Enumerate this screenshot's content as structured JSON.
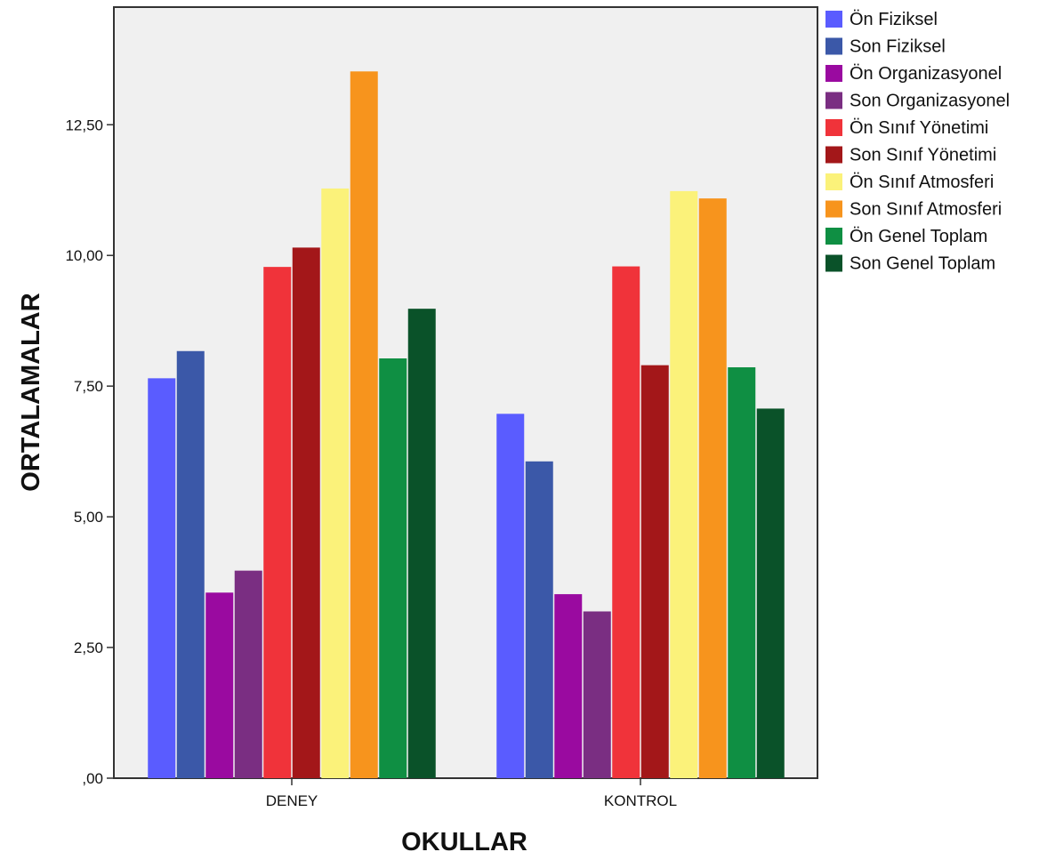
{
  "chart_data": {
    "type": "bar",
    "xlabel": "OKULLAR",
    "ylabel": "ORTALAMALAR",
    "ylim": [
      0,
      14.75
    ],
    "yticks": [
      {
        "value": 0,
        "label": ",00"
      },
      {
        "value": 2.5,
        "label": "2,50"
      },
      {
        "value": 5,
        "label": "5,00"
      },
      {
        "value": 7.5,
        "label": "7,50"
      },
      {
        "value": 10,
        "label": "10,00"
      },
      {
        "value": 12.5,
        "label": "12,50"
      }
    ],
    "categories": [
      "DENEY",
      "KONTROL"
    ],
    "grid": false,
    "legend_position": "right",
    "plot_background": "#f0f0f0",
    "series": [
      {
        "name": "Ön Fiziksel",
        "color": "#5a5cff",
        "values": [
          7.65,
          6.97
        ]
      },
      {
        "name": "Son Fiziksel",
        "color": "#3b58a8",
        "values": [
          8.17,
          6.06
        ]
      },
      {
        "name": "Ön Organizasyonel",
        "color": "#9a0aa0",
        "values": [
          3.55,
          3.52
        ]
      },
      {
        "name": "Son Organizasyonel",
        "color": "#7a2e82",
        "values": [
          3.97,
          3.19
        ]
      },
      {
        "name": "Ön Sınıf Yönetimi",
        "color": "#f0333a",
        "values": [
          9.78,
          9.79
        ]
      },
      {
        "name": "Son Sınıf Yönetimi",
        "color": "#a31719",
        "values": [
          10.15,
          7.9
        ]
      },
      {
        "name": "Ön Sınıf Atmosferi",
        "color": "#fbf27a",
        "values": [
          11.28,
          11.23
        ]
      },
      {
        "name": "Son Sınıf Atmosferi",
        "color": "#f7941d",
        "values": [
          13.52,
          11.09
        ]
      },
      {
        "name": "Ön Genel Toplam",
        "color": "#0f8f43",
        "values": [
          8.03,
          7.86
        ]
      },
      {
        "name": "Son Genel Toplam",
        "color": "#0a5229",
        "values": [
          8.98,
          7.07
        ]
      }
    ]
  }
}
